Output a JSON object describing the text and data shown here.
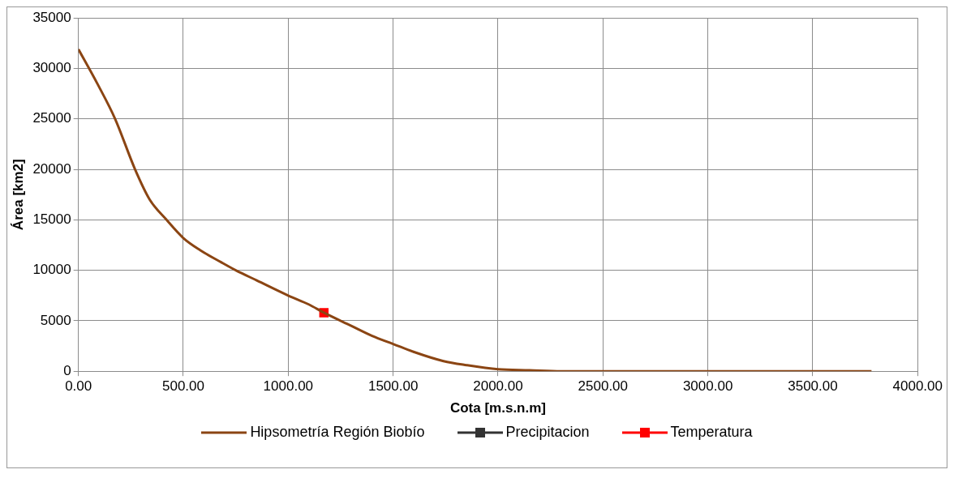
{
  "chart_data": {
    "type": "line",
    "xlabel": "Cota [m.s.n.m]",
    "ylabel": "Área [km2]",
    "xlim": [
      0,
      4000
    ],
    "ylim": [
      0,
      35000
    ],
    "xticks": [
      {
        "value": 0,
        "label": "0.00"
      },
      {
        "value": 500,
        "label": "500.00"
      },
      {
        "value": 1000,
        "label": "1000.00"
      },
      {
        "value": 1500,
        "label": "1500.00"
      },
      {
        "value": 2000,
        "label": "2000.00"
      },
      {
        "value": 2500,
        "label": "2500.00"
      },
      {
        "value": 3000,
        "label": "3000.00"
      },
      {
        "value": 3500,
        "label": "3500.00"
      },
      {
        "value": 4000,
        "label": "4000.00"
      }
    ],
    "yticks": [
      0,
      5000,
      10000,
      15000,
      20000,
      25000,
      30000,
      35000
    ],
    "grid": true,
    "legend": "bottom",
    "series": [
      {
        "name": "Hipsometría Región Biobío",
        "color": "#8b4513",
        "marker": "none",
        "x": [
          0,
          90,
          175,
          270,
          340,
          420,
          500,
          580,
          680,
          750,
          850,
          1000,
          1100,
          1170,
          1300,
          1400,
          1500,
          1600,
          1740,
          1850,
          2000,
          2150,
          2300,
          2500,
          2800,
          3200,
          3500,
          3780
        ],
        "values": [
          31900,
          28500,
          25000,
          20000,
          17000,
          15000,
          13200,
          12000,
          10800,
          10000,
          9000,
          7500,
          6600,
          5800,
          4500,
          3500,
          2700,
          1900,
          1000,
          600,
          200,
          100,
          0,
          0,
          0,
          0,
          0,
          0
        ]
      },
      {
        "name": "Precipitacion",
        "color": "#333333",
        "marker": "square"
      },
      {
        "name": "Temperatura",
        "color": "#ff0000",
        "marker": "square",
        "x": [
          1170
        ],
        "values": [
          5800
        ]
      }
    ]
  }
}
